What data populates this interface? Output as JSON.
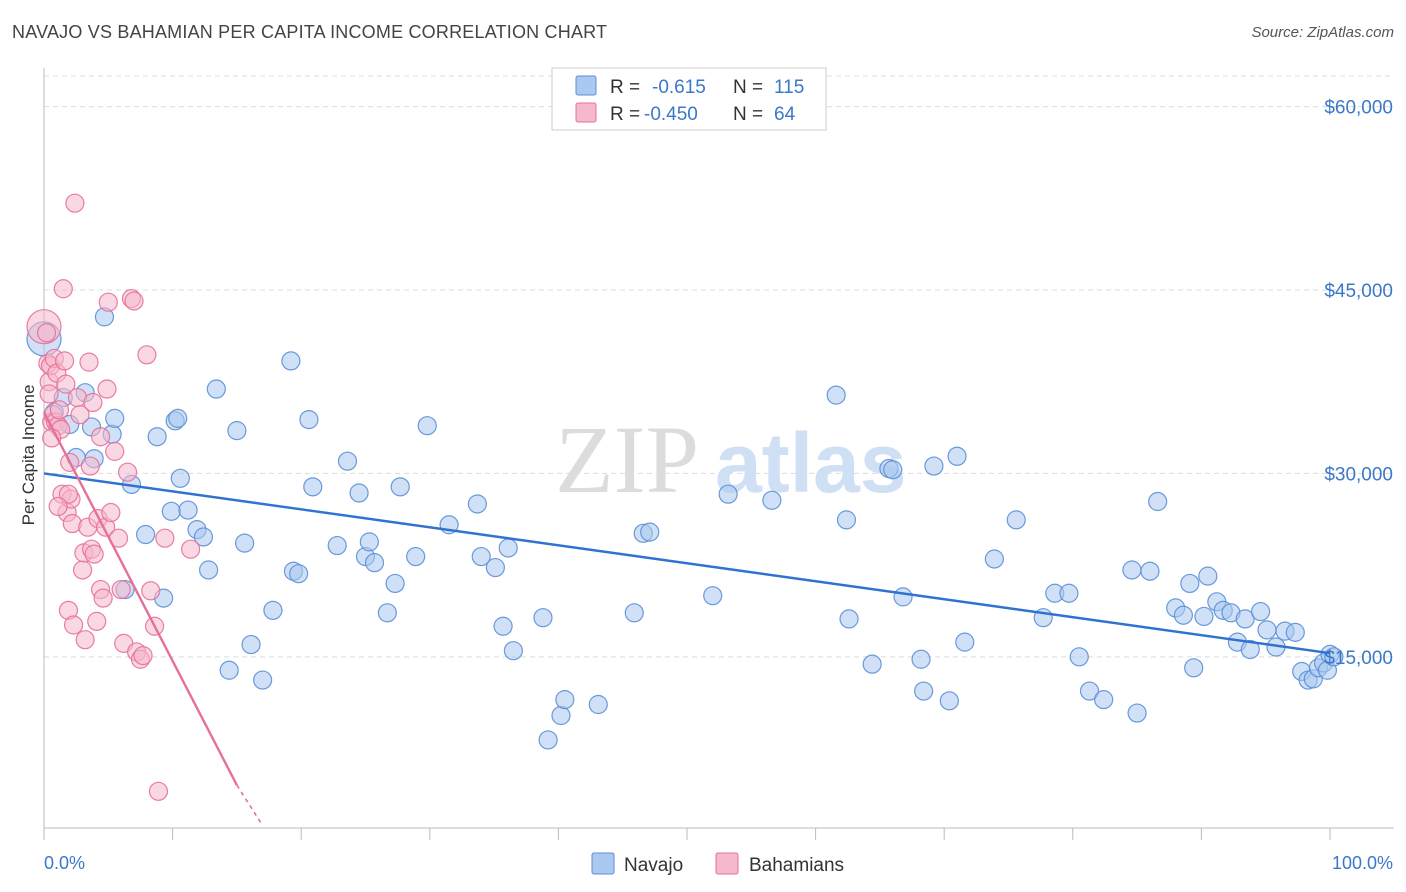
{
  "title": "NAVAJO VS BAHAMIAN PER CAPITA INCOME CORRELATION CHART",
  "source": "Source: ZipAtlas.com",
  "watermark": {
    "zip": "ZIP",
    "atlas": "atlas"
  },
  "colors": {
    "navajo_fill": "#aac8f0",
    "navajo_stroke": "#5b8fd6",
    "navajo_line": "#2f72d0",
    "bahamian_fill": "#f6b8cc",
    "bahamian_stroke": "#e5709a",
    "bahamian_line": "#e5709a",
    "tick_text": "#3a78c9",
    "grid": "#dcdcdc"
  },
  "legend": {
    "rows": [
      {
        "r_label": "R =",
        "r_value": "-0.615",
        "n_label": "N =",
        "n_value": "115"
      },
      {
        "r_label": "R =",
        "r_value": "-0.450",
        "n_label": "N =",
        "n_value": "64"
      }
    ]
  },
  "bottom_legend": [
    "Navajo",
    "Bahamians"
  ],
  "chart_data": {
    "type": "scatter",
    "ylabel": "Per Capita Income",
    "x_tick_labels": [
      "0.0%",
      "100.0%"
    ],
    "y_tick_labels": [
      "$15,000",
      "$30,000",
      "$45,000",
      "$60,000"
    ],
    "y_ticks": [
      15000,
      30000,
      45000,
      60000
    ],
    "xlim": [
      0,
      100
    ],
    "ylim": [
      1000,
      62500
    ],
    "grid": true,
    "legend_position": "top-center",
    "series": [
      {
        "name": "Navajo",
        "trend": {
          "x": [
            0,
            100
          ],
          "y": [
            30000,
            15300
          ]
        },
        "points": [
          [
            0,
            41000
          ],
          [
            0.8,
            35000
          ],
          [
            1.5,
            36200
          ],
          [
            2,
            34000
          ],
          [
            2.5,
            31300
          ],
          [
            3.2,
            36600
          ],
          [
            3.7,
            33800
          ],
          [
            3.9,
            31200
          ],
          [
            4.7,
            42800
          ],
          [
            5.3,
            33200
          ],
          [
            5.5,
            34500
          ],
          [
            6.3,
            20500
          ],
          [
            6.8,
            29100
          ],
          [
            7.9,
            25000
          ],
          [
            8.8,
            33000
          ],
          [
            9.3,
            19800
          ],
          [
            9.9,
            26900
          ],
          [
            10.2,
            34300
          ],
          [
            10.6,
            29600
          ],
          [
            11.2,
            27000
          ],
          [
            11.9,
            25400
          ],
          [
            12.4,
            24800
          ],
          [
            12.8,
            22100
          ],
          [
            13.4,
            36900
          ],
          [
            14.4,
            13900
          ],
          [
            15.0,
            33500
          ],
          [
            15.6,
            24300
          ],
          [
            16.1,
            16000
          ],
          [
            17.0,
            13100
          ],
          [
            17.8,
            18800
          ],
          [
            19.2,
            39200
          ],
          [
            19.4,
            22000
          ],
          [
            19.8,
            21800
          ],
          [
            20.6,
            34400
          ],
          [
            20.9,
            28900
          ],
          [
            22.8,
            24100
          ],
          [
            23.6,
            31000
          ],
          [
            24.5,
            28400
          ],
          [
            25.0,
            23200
          ],
          [
            25.3,
            24400
          ],
          [
            25.7,
            22700
          ],
          [
            26.7,
            18600
          ],
          [
            27.3,
            21000
          ],
          [
            27.7,
            28900
          ],
          [
            28.9,
            23200
          ],
          [
            29.8,
            33900
          ],
          [
            31.5,
            25800
          ],
          [
            33.7,
            27500
          ],
          [
            34.0,
            23200
          ],
          [
            35.1,
            22300
          ],
          [
            35.7,
            17500
          ],
          [
            36.1,
            23900
          ],
          [
            36.5,
            15500
          ],
          [
            38.8,
            18200
          ],
          [
            39.2,
            8200
          ],
          [
            40.2,
            10200
          ],
          [
            40.5,
            11500
          ],
          [
            43.1,
            11100
          ],
          [
            45.9,
            18600
          ],
          [
            46.6,
            25100
          ],
          [
            47.1,
            25200
          ],
          [
            52.0,
            20000
          ],
          [
            53.2,
            28300
          ],
          [
            56.6,
            27800
          ],
          [
            61.6,
            36400
          ],
          [
            62.4,
            26200
          ],
          [
            62.6,
            18100
          ],
          [
            64.4,
            14400
          ],
          [
            65.7,
            30400
          ],
          [
            66.0,
            30300
          ],
          [
            66.8,
            19900
          ],
          [
            68.2,
            14800
          ],
          [
            68.4,
            12200
          ],
          [
            69.2,
            30600
          ],
          [
            70.4,
            11400
          ],
          [
            71.0,
            31400
          ],
          [
            71.6,
            16200
          ],
          [
            73.9,
            23000
          ],
          [
            75.6,
            26200
          ],
          [
            77.7,
            18200
          ],
          [
            78.6,
            20200
          ],
          [
            79.7,
            20200
          ],
          [
            80.5,
            15000
          ],
          [
            81.3,
            12200
          ],
          [
            82.4,
            11500
          ],
          [
            84.6,
            22100
          ],
          [
            85.0,
            10400
          ],
          [
            86.0,
            22000
          ],
          [
            86.6,
            27700
          ],
          [
            88.0,
            19000
          ],
          [
            88.6,
            18400
          ],
          [
            89.1,
            21000
          ],
          [
            89.4,
            14100
          ],
          [
            90.2,
            18300
          ],
          [
            90.5,
            21600
          ],
          [
            91.2,
            19500
          ],
          [
            91.7,
            18800
          ],
          [
            92.3,
            18600
          ],
          [
            92.8,
            16200
          ],
          [
            93.4,
            18100
          ],
          [
            93.8,
            15600
          ],
          [
            94.6,
            18700
          ],
          [
            95.1,
            17200
          ],
          [
            95.8,
            15800
          ],
          [
            96.5,
            17100
          ],
          [
            97.3,
            17000
          ],
          [
            97.8,
            13800
          ],
          [
            98.3,
            13100
          ],
          [
            98.7,
            13200
          ],
          [
            99.1,
            14100
          ],
          [
            99.5,
            14500
          ],
          [
            99.8,
            13900
          ],
          [
            100.0,
            15200
          ],
          [
            100.3,
            15000
          ],
          [
            10.4,
            34500
          ]
        ]
      },
      {
        "name": "Bahamians",
        "trend": {
          "x": [
            0,
            15
          ],
          "y": [
            35000,
            4500
          ],
          "dash_to": {
            "x": 17,
            "y": 1200
          }
        },
        "points": [
          [
            0,
            42000
          ],
          [
            0.2,
            41500
          ],
          [
            0.3,
            39000
          ],
          [
            0.4,
            37500
          ],
          [
            0.5,
            38800
          ],
          [
            0.6,
            34200
          ],
          [
            0.7,
            34800
          ],
          [
            0.8,
            39400
          ],
          [
            0.9,
            34200
          ],
          [
            1.0,
            38200
          ],
          [
            1.1,
            33900
          ],
          [
            1.2,
            35200
          ],
          [
            1.3,
            33600
          ],
          [
            1.4,
            28300
          ],
          [
            1.5,
            45100
          ],
          [
            1.6,
            39200
          ],
          [
            1.7,
            37300
          ],
          [
            1.8,
            26800
          ],
          [
            1.9,
            18800
          ],
          [
            2.0,
            30900
          ],
          [
            2.1,
            27900
          ],
          [
            2.2,
            25900
          ],
          [
            2.3,
            17600
          ],
          [
            2.4,
            52100
          ],
          [
            2.6,
            36200
          ],
          [
            2.8,
            34800
          ],
          [
            3.0,
            22100
          ],
          [
            3.1,
            23500
          ],
          [
            3.2,
            16400
          ],
          [
            3.4,
            25600
          ],
          [
            3.5,
            39100
          ],
          [
            3.6,
            30600
          ],
          [
            3.7,
            23800
          ],
          [
            3.8,
            35800
          ],
          [
            3.9,
            23400
          ],
          [
            4.1,
            17900
          ],
          [
            4.2,
            26300
          ],
          [
            4.4,
            20500
          ],
          [
            4.6,
            19800
          ],
          [
            4.8,
            25600
          ],
          [
            4.9,
            36900
          ],
          [
            5.0,
            44000
          ],
          [
            5.2,
            26800
          ],
          [
            5.5,
            31800
          ],
          [
            5.8,
            24700
          ],
          [
            6.0,
            20500
          ],
          [
            6.2,
            16100
          ],
          [
            6.5,
            30100
          ],
          [
            6.8,
            44300
          ],
          [
            7.0,
            44100
          ],
          [
            7.2,
            15400
          ],
          [
            7.5,
            14800
          ],
          [
            7.7,
            15100
          ],
          [
            8.0,
            39700
          ],
          [
            8.3,
            20400
          ],
          [
            8.6,
            17500
          ],
          [
            8.9,
            4000
          ],
          [
            9.4,
            24700
          ],
          [
            11.4,
            23800
          ],
          [
            0.6,
            32900
          ],
          [
            1.9,
            28300
          ],
          [
            4.4,
            33000
          ],
          [
            1.1,
            27300
          ],
          [
            0.4,
            36500
          ]
        ]
      }
    ]
  }
}
